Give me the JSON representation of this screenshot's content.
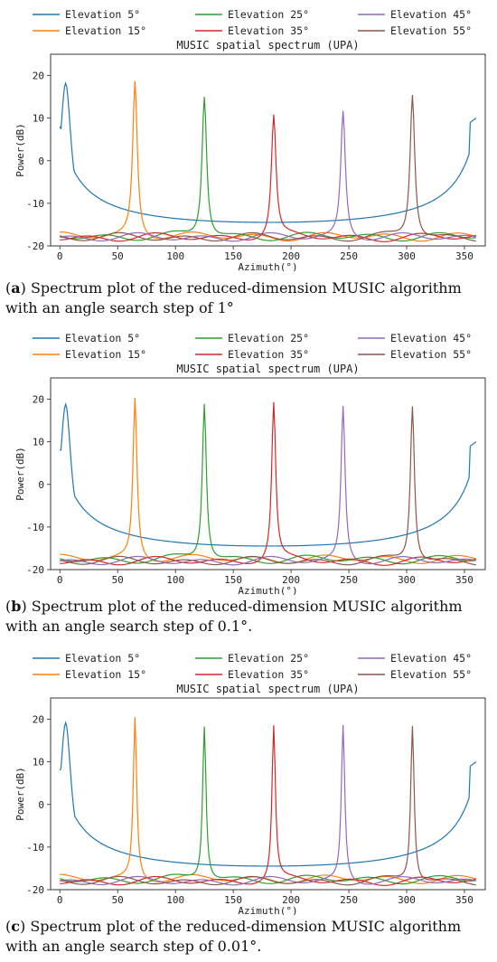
{
  "figures": [
    {
      "caption_label": "a",
      "caption_text": " Spectrum plot of the reduced-dimension MUSIC algorithm with an angle search step of 1°"
    },
    {
      "caption_label": "b",
      "caption_text": " Spectrum plot of the reduced-dimension MUSIC algorithm with an angle search step of 0.1°."
    },
    {
      "caption_label": "c",
      "caption_text": " Spectrum plot of the reduced-dimension MUSIC algorithm with an angle search step of 0.01°."
    }
  ],
  "chart_data": [
    {
      "type": "line",
      "title": "MUSIC spatial spectrum (UPA)",
      "xlabel": "Azimuth(°)",
      "ylabel": "Power(dB)",
      "xlim": [
        -8,
        368
      ],
      "ylim": [
        -20,
        25
      ],
      "xticks": [
        0,
        50,
        100,
        150,
        200,
        250,
        300,
        350
      ],
      "yticks": [
        -20,
        -10,
        0,
        10,
        20
      ],
      "legend_position": "top",
      "series": [
        {
          "name": "Elevation 5°",
          "color": "#1f77b4",
          "peak_x": 5,
          "peak_y": 18.2,
          "baseline": -17
        },
        {
          "name": "Elevation 15°",
          "color": "#ff7f0e",
          "peak_x": 65,
          "peak_y": 18.7,
          "baseline": -17.8
        },
        {
          "name": "Elevation 25°",
          "color": "#2ca02c",
          "peak_x": 125,
          "peak_y": 15.4,
          "baseline": -17.8
        },
        {
          "name": "Elevation 35°",
          "color": "#d62728",
          "peak_x": 185,
          "peak_y": 10.5,
          "baseline": -18
        },
        {
          "name": "Elevation 45°",
          "color": "#9467bd",
          "peak_x": 245,
          "peak_y": 11.6,
          "baseline": -18
        },
        {
          "name": "Elevation 55°",
          "color": "#8c564b",
          "peak_x": 305,
          "peak_y": 15.8,
          "baseline": -18
        }
      ]
    },
    {
      "type": "line",
      "title": "MUSIC spatial spectrum (UPA)",
      "xlabel": "Azimuth(°)",
      "ylabel": "Power(dB)",
      "xlim": [
        -8,
        368
      ],
      "ylim": [
        -20,
        25
      ],
      "xticks": [
        0,
        50,
        100,
        150,
        200,
        250,
        300,
        350
      ],
      "yticks": [
        -20,
        -10,
        0,
        10,
        20
      ],
      "legend_position": "top",
      "series": [
        {
          "name": "Elevation 5°",
          "color": "#1f77b4",
          "peak_x": 5,
          "peak_y": 18.8,
          "baseline": -17
        },
        {
          "name": "Elevation 15°",
          "color": "#ff7f0e",
          "peak_x": 65,
          "peak_y": 20.3,
          "baseline": -17.5
        },
        {
          "name": "Elevation 25°",
          "color": "#2ca02c",
          "peak_x": 125,
          "peak_y": 19.3,
          "baseline": -17.6
        },
        {
          "name": "Elevation 35°",
          "color": "#d62728",
          "peak_x": 185,
          "peak_y": 19,
          "baseline": -18
        },
        {
          "name": "Elevation 45°",
          "color": "#9467bd",
          "peak_x": 245,
          "peak_y": 18.3,
          "baseline": -18
        },
        {
          "name": "Elevation 55°",
          "color": "#8c564b",
          "peak_x": 305,
          "peak_y": 18.7,
          "baseline": -18
        }
      ]
    },
    {
      "type": "line",
      "title": "MUSIC spatial spectrum (UPA)",
      "xlabel": "Azimuth(°)",
      "ylabel": "Power(dB)",
      "xlim": [
        -8,
        368
      ],
      "ylim": [
        -20,
        25
      ],
      "xticks": [
        0,
        50,
        100,
        150,
        200,
        250,
        300,
        350
      ],
      "yticks": [
        -20,
        -10,
        0,
        10,
        20
      ],
      "legend_position": "top",
      "series": [
        {
          "name": "Elevation 5°",
          "color": "#1f77b4",
          "peak_x": 5,
          "peak_y": 19.2,
          "baseline": -17
        },
        {
          "name": "Elevation 15°",
          "color": "#ff7f0e",
          "peak_x": 65,
          "peak_y": 20.5,
          "baseline": -17.5
        },
        {
          "name": "Elevation 25°",
          "color": "#2ca02c",
          "peak_x": 125,
          "peak_y": 18.7,
          "baseline": -17.6
        },
        {
          "name": "Elevation 35°",
          "color": "#d62728",
          "peak_x": 185,
          "peak_y": 18.3,
          "baseline": -18
        },
        {
          "name": "Elevation 45°",
          "color": "#9467bd",
          "peak_x": 245,
          "peak_y": 18.5,
          "baseline": -18
        },
        {
          "name": "Elevation 55°",
          "color": "#8c564b",
          "peak_x": 305,
          "peak_y": 18.8,
          "baseline": -18
        }
      ]
    }
  ]
}
